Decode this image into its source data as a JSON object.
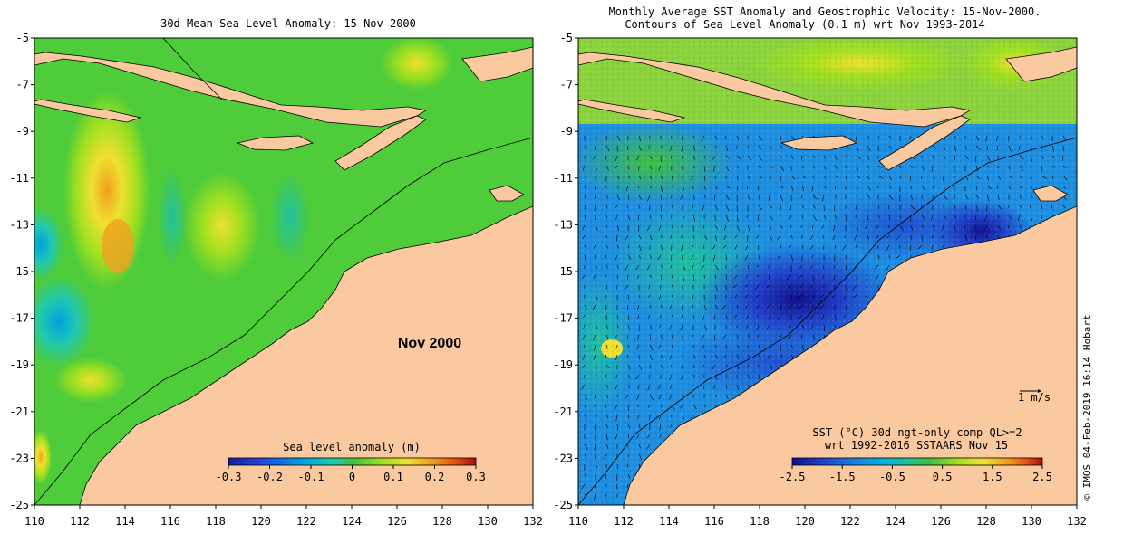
{
  "left_panel": {
    "title": "30d Mean Sea Level Anomaly: 15-Nov-2000",
    "month_label": "Nov 2000",
    "colorbar": {
      "label": "Sea level anomaly (m)",
      "ticks": [
        "-0.3",
        "-0.2",
        "-0.1",
        "0",
        "0.1",
        "0.2",
        "0.3"
      ],
      "colors": [
        "#1a1a9a",
        "#2050e0",
        "#00a0e0",
        "#20c8b0",
        "#40c040",
        "#a0e020",
        "#f0e030",
        "#f0a020",
        "#e05010",
        "#a01010"
      ]
    }
  },
  "right_panel": {
    "title_line1": "Monthly Average SST Anomaly  and Geostrophic Velocity: 15-Nov-2000.",
    "title_line2": "Contours of Sea Level Anomaly (0.1 m) wrt Nov 1993-2014",
    "vector_scale_label": "1 m/s",
    "colorbar": {
      "label_line1": "SST (°C) 30d ngt-only comp QL>=2",
      "label_line2": "wrt 1992-2016 SSTAARS Nov 15",
      "ticks": [
        "-2.5",
        "-1.5",
        "-0.5",
        "0.5",
        "1.5",
        "2.5"
      ],
      "colors": [
        "#10108a",
        "#2040c8",
        "#1a80e0",
        "#00b0e0",
        "#20c0a0",
        "#40c040",
        "#a0e020",
        "#f0e030",
        "#f0a020",
        "#e05010",
        "#a01010"
      ]
    }
  },
  "axes": {
    "x_ticks": [
      "110",
      "112",
      "114",
      "116",
      "118",
      "120",
      "122",
      "124",
      "126",
      "128",
      "130",
      "132"
    ],
    "y_ticks": [
      "-5",
      "-7",
      "-9",
      "-11",
      "-13",
      "-15",
      "-17",
      "-19",
      "-21",
      "-23",
      "-25"
    ]
  },
  "credit": "©  IMOS 04-Feb-2019 16:14 Hobart",
  "colors": {
    "land": "#fbc99f",
    "sea_left": "#4fcc3a",
    "sea_right": "#1e8ee0"
  }
}
